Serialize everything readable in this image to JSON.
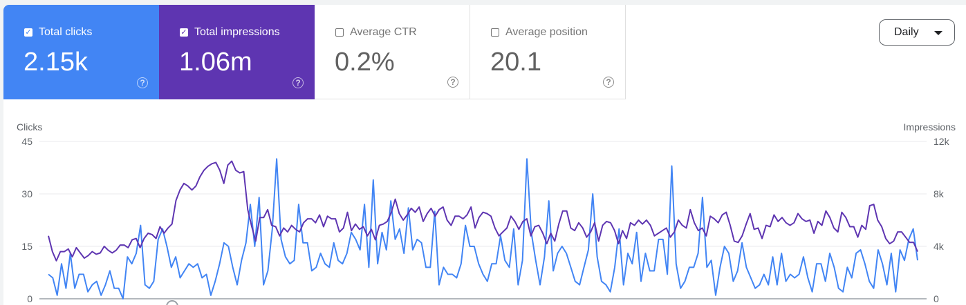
{
  "metrics": {
    "clicks": {
      "label": "Total clicks",
      "value": "2.15k",
      "checked": true,
      "color": "#4285f4"
    },
    "impressions": {
      "label": "Total impressions",
      "value": "1.06m",
      "checked": true,
      "color": "#5e35b1"
    },
    "ctr": {
      "label": "Average CTR",
      "value": "0.2%",
      "checked": false
    },
    "position": {
      "label": "Average position",
      "value": "20.1",
      "checked": false
    }
  },
  "help_glyph": "?",
  "check_glyph": "✓",
  "granularity": {
    "selected": "Daily"
  },
  "chart_data": {
    "type": "line",
    "left_axis": {
      "label": "Clicks",
      "ticks": [
        "0",
        "15",
        "30",
        "45"
      ],
      "range": [
        0,
        45
      ]
    },
    "right_axis": {
      "label": "Impressions",
      "ticks": [
        "0",
        "4k",
        "8k",
        "12k"
      ],
      "range": [
        0,
        12000
      ]
    },
    "grid": true,
    "series": [
      {
        "name": "Clicks",
        "axis": "left",
        "color": "#4285f4",
        "values": [
          7,
          6,
          1,
          10,
          3,
          13,
          3,
          7,
          7,
          2,
          4,
          5,
          1,
          4,
          8,
          3,
          3,
          0,
          12,
          10,
          13,
          21,
          4,
          3,
          5,
          17,
          20,
          15,
          9,
          12,
          6,
          8,
          10,
          9,
          10,
          6,
          7,
          1,
          5,
          10,
          16,
          15,
          9,
          4,
          11,
          16,
          27,
          15,
          29,
          4,
          8,
          20,
          40,
          17,
          12,
          10,
          11,
          27,
          16,
          16,
          8,
          9,
          13,
          10,
          9,
          16,
          11,
          10,
          13,
          19,
          17,
          14,
          27,
          9,
          34,
          10,
          19,
          14,
          28,
          17,
          20,
          13,
          26,
          14,
          17,
          16,
          9,
          9,
          25,
          4,
          9,
          7,
          7,
          6,
          10,
          21,
          15,
          15,
          10,
          7,
          5,
          10,
          10,
          18,
          11,
          9,
          20,
          4,
          11,
          40,
          19,
          11,
          4,
          12,
          28,
          8,
          13,
          15,
          13,
          9,
          5,
          4,
          9,
          14,
          30,
          12,
          5,
          4,
          2,
          9,
          20,
          4,
          13,
          10,
          19,
          5,
          13,
          8,
          8,
          17,
          17,
          7,
          38,
          10,
          3,
          5,
          9,
          9,
          13,
          29,
          9,
          11,
          1,
          9,
          15,
          13,
          5,
          8,
          16,
          9,
          6,
          3,
          4,
          7,
          4,
          12,
          4,
          13,
          5,
          7,
          6,
          7,
          12,
          6,
          2,
          10,
          10,
          5,
          13,
          9,
          3,
          2,
          9,
          6,
          13,
          14,
          10,
          5,
          3,
          14,
          10,
          4,
          13,
          2,
          14,
          11,
          17,
          20,
          11
        ]
      },
      {
        "name": "Impressions",
        "axis": "right",
        "color": "#5e35b1",
        "values": [
          4800,
          3600,
          2900,
          3600,
          3600,
          3800,
          3200,
          3900,
          3500,
          3100,
          3300,
          3600,
          3400,
          3500,
          4000,
          3700,
          3500,
          3700,
          4100,
          4100,
          3900,
          4500,
          4600,
          3900,
          4600,
          5000,
          4900,
          4600,
          5500,
          5000,
          5400,
          5700,
          7500,
          8300,
          8800,
          8600,
          8300,
          8600,
          9300,
          9800,
          10100,
          10300,
          10400,
          9800,
          8800,
          10200,
          10500,
          9800,
          9600,
          9700,
          6800,
          5500,
          4400,
          6200,
          6200,
          6800,
          5600,
          5500,
          4800,
          5400,
          5100,
          5600,
          5300,
          5100,
          5800,
          6100,
          6100,
          5800,
          6400,
          5500,
          6300,
          6100,
          6100,
          5100,
          5400,
          6600,
          5200,
          5700,
          5300,
          5500,
          4800,
          5300,
          4500,
          5600,
          5700,
          5900,
          6600,
          7600,
          6500,
          6000,
          6400,
          6900,
          6600,
          7000,
          5900,
          6500,
          6900,
          6300,
          6800,
          7000,
          6000,
          5600,
          6300,
          6300,
          6100,
          6400,
          7000,
          5400,
          6200,
          6600,
          6500,
          6300,
          5400,
          4800,
          5100,
          5400,
          6300,
          5900,
          5300,
          5900,
          6100,
          4800,
          5500,
          5600,
          5000,
          4200,
          5000,
          4400,
          5700,
          6700,
          6700,
          5400,
          5200,
          5800,
          5400,
          4700,
          5100,
          5800,
          4400,
          5600,
          5900,
          5800,
          5200,
          4200,
          5200,
          4600,
          5800,
          5600,
          6000,
          5700,
          6000,
          5600,
          4800,
          5000,
          5200,
          5400,
          4700,
          5100,
          6000,
          5600,
          5400,
          6800,
          5800,
          5200,
          5400,
          4800,
          6300,
          6100,
          5800,
          6400,
          6600,
          5600,
          4400,
          4300,
          4800,
          5700,
          6500,
          5300,
          5400,
          4600,
          5600,
          5500,
          6400,
          5900,
          6200,
          5800,
          5600,
          5800,
          6500,
          6100,
          5900,
          6000,
          5000,
          5900,
          5600,
          6700,
          6200,
          5400,
          5100,
          6600,
          6200,
          5500,
          5500,
          4700,
          5600,
          5300,
          7100,
          7200,
          6000,
          5500,
          4600,
          4200,
          4400,
          5100,
          5100,
          4700,
          4300,
          4300,
          3600
        ]
      }
    ]
  }
}
